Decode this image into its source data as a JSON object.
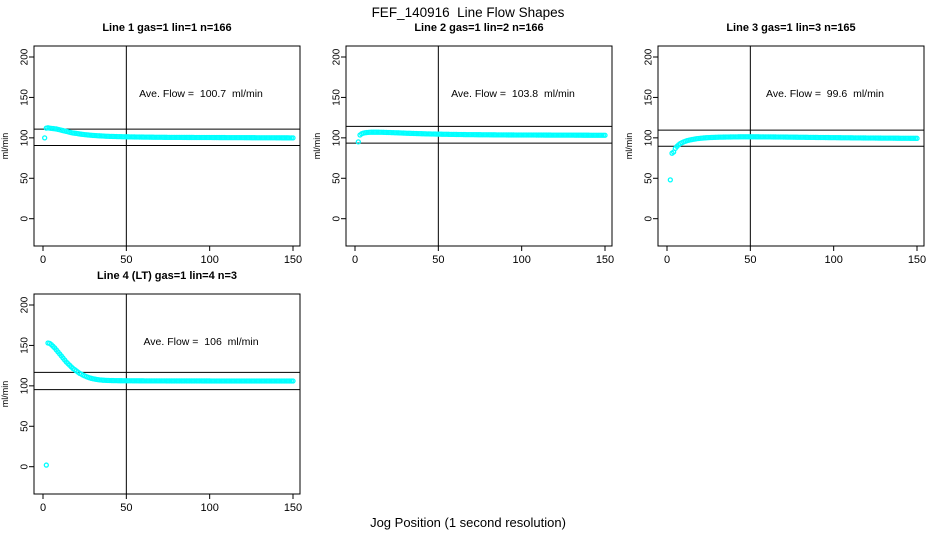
{
  "figure": {
    "title": "FEF_140916  Line Flow Shapes",
    "xlabel": "Jog Position (1 second resolution)",
    "background": "#FFFFFF",
    "line_color": "#000000",
    "marker_color": "#00FFFF"
  },
  "chart_data": [
    {
      "type": "scatter",
      "title": "Line 1 gas=1 lin=1 n=166",
      "annotation": "Ave. Flow =  100.7  ml/min",
      "ave_flow_ml_min": 100.7,
      "ylabel": "ml/min",
      "xlim": [
        0,
        150
      ],
      "ylim": [
        0,
        200
      ],
      "x_ticks": [
        0,
        50,
        100,
        150
      ],
      "y_ticks": [
        0,
        50,
        100,
        150,
        200
      ],
      "vline_x": 50,
      "hlines": [
        90.6,
        110.8
      ],
      "marker_color": "#00FFFF",
      "points": [
        [
          1,
          100
        ],
        [
          2,
          112
        ],
        [
          3,
          112.5
        ],
        [
          4,
          112
        ],
        [
          6,
          111.5
        ],
        [
          8,
          111
        ],
        [
          10,
          110
        ],
        [
          12,
          109
        ],
        [
          14,
          108
        ],
        [
          16,
          107
        ],
        [
          18,
          106
        ],
        [
          20,
          105.5
        ],
        [
          23,
          104.5
        ],
        [
          26,
          103.8
        ],
        [
          30,
          103
        ],
        [
          34,
          102.5
        ],
        [
          38,
          102
        ],
        [
          44,
          101.6
        ],
        [
          50,
          101.3
        ],
        [
          58,
          101
        ],
        [
          66,
          100.8
        ],
        [
          76,
          100.6
        ],
        [
          88,
          100.5
        ],
        [
          100,
          100.4
        ],
        [
          112,
          100.3
        ],
        [
          124,
          100.2
        ],
        [
          136,
          100.1
        ],
        [
          150,
          100
        ]
      ]
    },
    {
      "type": "scatter",
      "title": "Line 2 gas=1 lin=2 n=166",
      "annotation": "Ave. Flow =  103.8  ml/min",
      "ave_flow_ml_min": 103.8,
      "ylabel": "ml/min",
      "xlim": [
        0,
        150
      ],
      "ylim": [
        0,
        200
      ],
      "x_ticks": [
        0,
        50,
        100,
        150
      ],
      "y_ticks": [
        0,
        50,
        100,
        150,
        200
      ],
      "vline_x": 50,
      "hlines": [
        93.4,
        114.2
      ],
      "marker_color": "#00FFFF",
      "points": [
        [
          2,
          95
        ],
        [
          3,
          103.5
        ],
        [
          4,
          105
        ],
        [
          5,
          105.8
        ],
        [
          6,
          106.3
        ],
        [
          8,
          106.8
        ],
        [
          10,
          107
        ],
        [
          14,
          107
        ],
        [
          18,
          106.8
        ],
        [
          22,
          106.5
        ],
        [
          26,
          106.2
        ],
        [
          30,
          105.8
        ],
        [
          36,
          105.4
        ],
        [
          42,
          105
        ],
        [
          50,
          104.6
        ],
        [
          58,
          104.3
        ],
        [
          68,
          104
        ],
        [
          80,
          103.8
        ],
        [
          92,
          103.6
        ],
        [
          106,
          103.5
        ],
        [
          120,
          103.4
        ],
        [
          135,
          103.3
        ],
        [
          150,
          103.2
        ]
      ]
    },
    {
      "type": "scatter",
      "title": "Line 3 gas=1 lin=3 n=165",
      "annotation": "Ave. Flow =  99.6  ml/min",
      "ave_flow_ml_min": 99.6,
      "ylabel": "ml/min",
      "xlim": [
        0,
        150
      ],
      "ylim": [
        0,
        200
      ],
      "x_ticks": [
        0,
        50,
        100,
        150
      ],
      "y_ticks": [
        0,
        50,
        100,
        150,
        200
      ],
      "vline_x": 50,
      "hlines": [
        89.6,
        109.6
      ],
      "marker_color": "#00FFFF",
      "points": [
        [
          2,
          48
        ],
        [
          3,
          81
        ],
        [
          4,
          82.5
        ],
        [
          5,
          87
        ],
        [
          6,
          89.5
        ],
        [
          7,
          91.5
        ],
        [
          8,
          93
        ],
        [
          9,
          94
        ],
        [
          10,
          95
        ],
        [
          12,
          96.5
        ],
        [
          14,
          97.5
        ],
        [
          16,
          98.3
        ],
        [
          18,
          99
        ],
        [
          21,
          99.7
        ],
        [
          24,
          100.2
        ],
        [
          28,
          100.6
        ],
        [
          32,
          100.9
        ],
        [
          38,
          101.1
        ],
        [
          44,
          101.3
        ],
        [
          52,
          101.3
        ],
        [
          60,
          101.2
        ],
        [
          70,
          101
        ],
        [
          82,
          100.7
        ],
        [
          94,
          100.4
        ],
        [
          108,
          100.1
        ],
        [
          122,
          99.8
        ],
        [
          136,
          99.6
        ],
        [
          150,
          99.4
        ]
      ]
    },
    {
      "type": "scatter",
      "title": "Line 4 (LT) gas=1 lin=4 n=3",
      "annotation": "Ave. Flow =  106  ml/min",
      "ave_flow_ml_min": 106,
      "ylabel": "ml/min",
      "xlim": [
        0,
        150
      ],
      "ylim": [
        0,
        200
      ],
      "x_ticks": [
        0,
        50,
        100,
        150
      ],
      "y_ticks": [
        0,
        50,
        100,
        150,
        200
      ],
      "vline_x": 50,
      "hlines": [
        95.4,
        116.6
      ],
      "marker_color": "#00FFFF",
      "points": [
        [
          2,
          2
        ],
        [
          3,
          153
        ],
        [
          4,
          152.5
        ],
        [
          5,
          151
        ],
        [
          6,
          149
        ],
        [
          7,
          147
        ],
        [
          8,
          144.5
        ],
        [
          9,
          142
        ],
        [
          10,
          139.5
        ],
        [
          11,
          137
        ],
        [
          12,
          134.5
        ],
        [
          13,
          132
        ],
        [
          14,
          129.5
        ],
        [
          15,
          127.5
        ],
        [
          16,
          125.5
        ],
        [
          17,
          123.5
        ],
        [
          18,
          121.5
        ],
        [
          19,
          120
        ],
        [
          20,
          118.5
        ],
        [
          21,
          117
        ],
        [
          22,
          115.5
        ],
        [
          23,
          114.5
        ],
        [
          24,
          113.3
        ],
        [
          25,
          112.3
        ],
        [
          26,
          111.4
        ],
        [
          27,
          110.6
        ],
        [
          28,
          109.9
        ],
        [
          29,
          109.3
        ],
        [
          30,
          108.8
        ],
        [
          32,
          108
        ],
        [
          34,
          107.4
        ],
        [
          36,
          107
        ],
        [
          38,
          106.8
        ],
        [
          40,
          106.6
        ],
        [
          45,
          106.4
        ],
        [
          50,
          106.3
        ],
        [
          60,
          106.2
        ],
        [
          75,
          106.1
        ],
        [
          90,
          106.1
        ],
        [
          110,
          106
        ],
        [
          130,
          106
        ],
        [
          150,
          106
        ]
      ]
    }
  ]
}
